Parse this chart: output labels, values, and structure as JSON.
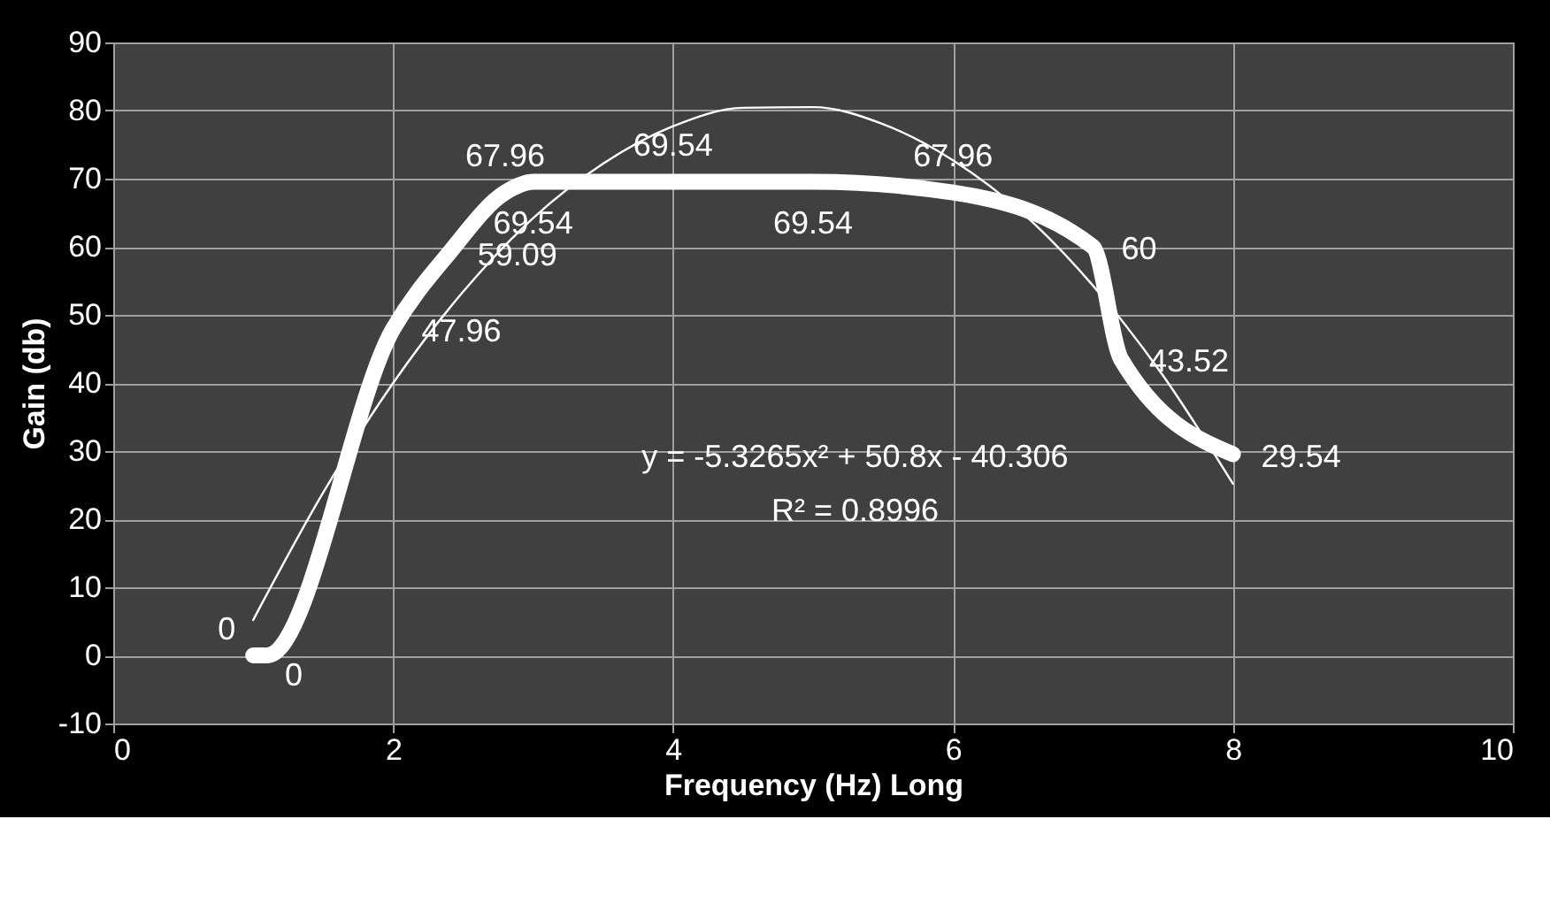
{
  "chart_data": {
    "type": "line",
    "xlabel": "Frequency (Hz) Long",
    "ylabel": "Gain (db)",
    "series": [
      {
        "color": "#ffffff",
        "x": [
          1,
          1.1,
          2,
          2.4,
          2.8,
          3,
          4,
          5,
          6,
          7,
          7.2,
          8
        ],
        "values": [
          0,
          0,
          47.96,
          59.09,
          67.96,
          69.54,
          69.54,
          69.54,
          67.96,
          60,
          43.52,
          29.54
        ],
        "value_labels": [
          "0",
          "0",
          "47.96",
          "59.09",
          "67.96",
          "69.54",
          "69.54",
          "69.54",
          "67.96",
          "60",
          "43.52",
          "29.54"
        ]
      },
      {
        "color": "#ffffff",
        "x": [
          1,
          1.5,
          2,
          2.5,
          3,
          3.5,
          4,
          4.5,
          5,
          5.5,
          6,
          6.5,
          7,
          7.5,
          8
        ],
        "values": [
          5.2,
          23.9,
          40.0,
          53.4,
          64.2,
          72.2,
          77.7,
          80.4,
          80.5,
          78.0,
          72.7,
          64.9,
          54.3,
          41.1,
          25.2
        ]
      }
    ],
    "annotations": [
      "y = -5.3265x² + 50.8x - 40.306",
      "R² = 0.8996"
    ],
    "xlim": [
      0,
      10
    ],
    "xticks": [
      0,
      2,
      4,
      6,
      8,
      10
    ],
    "ylim": [
      -10,
      90
    ],
    "yticks": [
      -10,
      0,
      10,
      20,
      30,
      40,
      50,
      60,
      70,
      80,
      90
    ],
    "grid": true
  }
}
